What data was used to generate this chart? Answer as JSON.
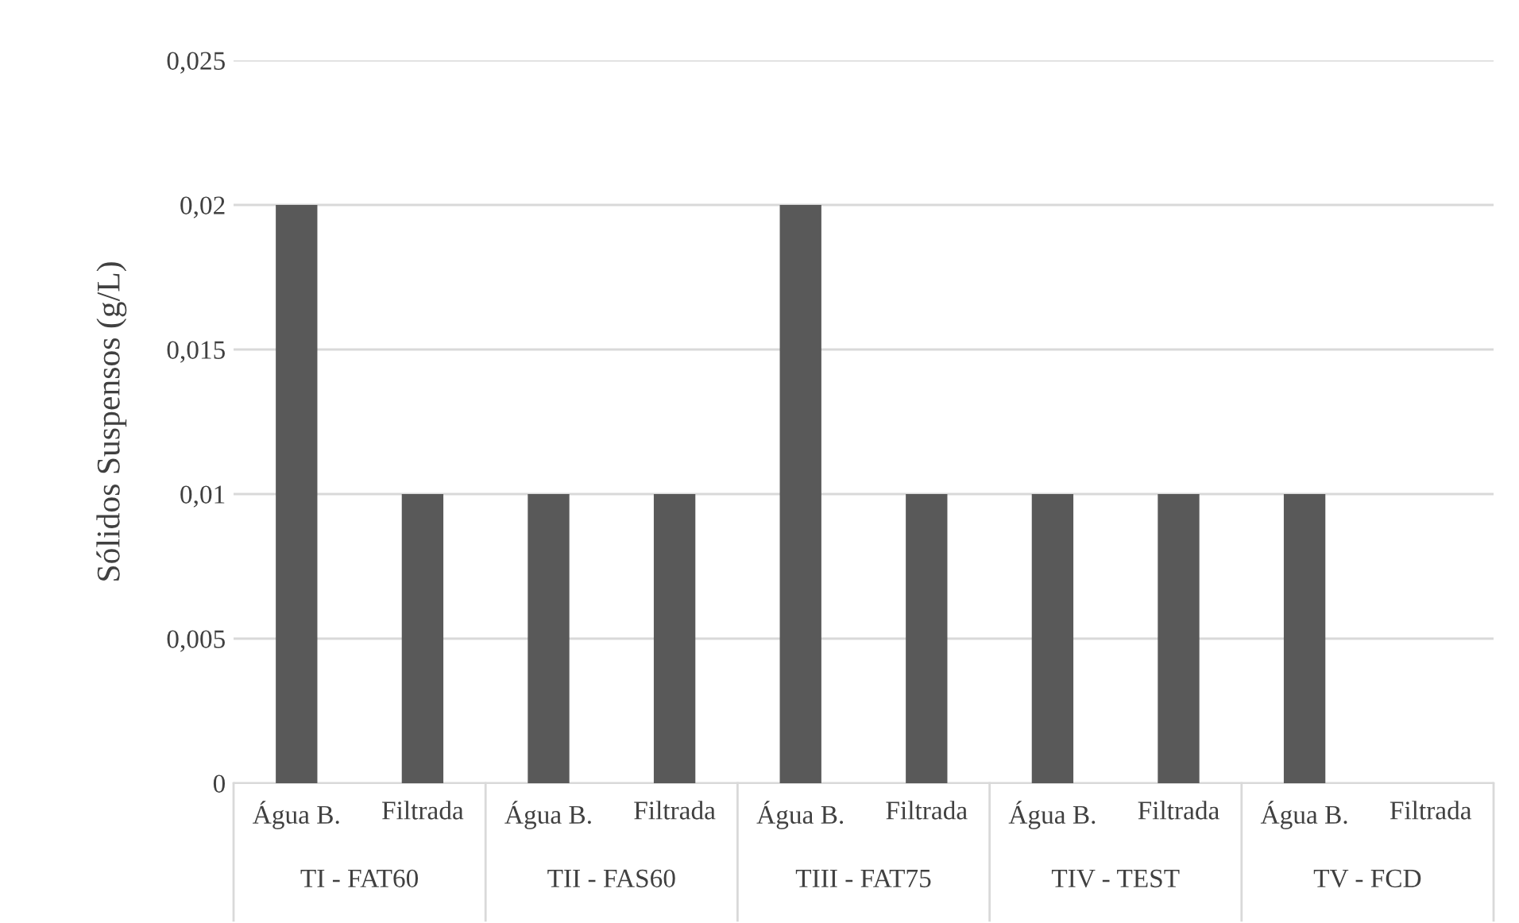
{
  "chart_data": {
    "type": "bar",
    "ylabel": "Sólidos Suspensos (g/L)",
    "categories": [
      "Água B.",
      "Filtrada",
      "Água B.",
      "Filtrada",
      "Água B.",
      "Filtrada",
      "Água B.",
      "Filtrada",
      "Água B.",
      "Filtrada"
    ],
    "values": [
      0.02,
      0.01,
      0.01,
      0.01,
      0.02,
      0.01,
      0.01,
      0.01,
      0.01,
      0
    ],
    "color": "#595959",
    "ylim": [
      0,
      0.025
    ],
    "yticks": [
      {
        "value": 0,
        "label": "0"
      },
      {
        "value": 0.005,
        "label": "0,005"
      },
      {
        "value": 0.01,
        "label": "0,01"
      },
      {
        "value": 0.015,
        "label": "0,015"
      },
      {
        "value": 0.02,
        "label": "0,02"
      },
      {
        "value": 0.025,
        "label": "0,025"
      }
    ],
    "grid": "y",
    "annotations": [
      "TI - FAT60",
      "TII - FAS60",
      "TIII - FAT75",
      "TIV - TEST",
      "TV - FCD"
    ]
  }
}
